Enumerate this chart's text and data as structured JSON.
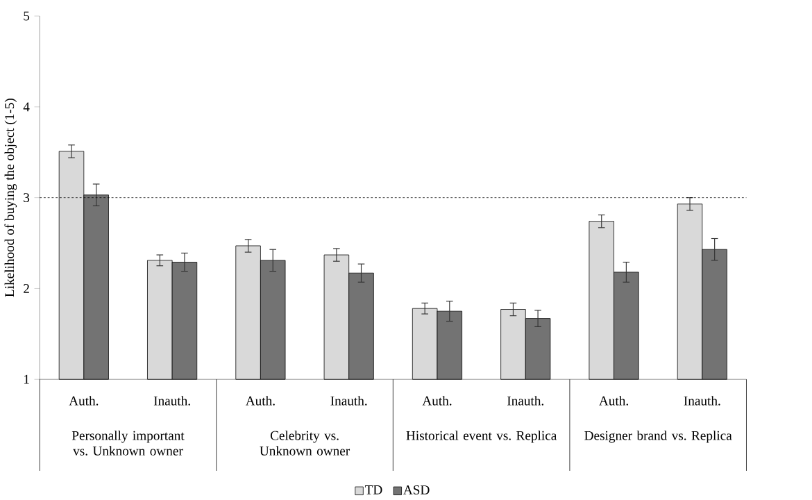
{
  "chart_data": {
    "type": "bar",
    "ylabel": "Likelihood of buying the object (1-5)",
    "categories": [
      "Auth.",
      "Inauth.",
      "Auth.",
      "Inauth.",
      "Auth.",
      "Inauth.",
      "Auth.",
      "Inauth."
    ],
    "series": [
      {
        "name": "TD",
        "color": "#d9d9d9",
        "values": [
          3.51,
          2.31,
          2.47,
          2.37,
          1.78,
          1.77,
          2.74,
          2.93
        ],
        "errors": [
          [
            3.44,
            3.59
          ],
          [
            2.25,
            2.38
          ],
          [
            2.4,
            2.55
          ],
          [
            2.3,
            2.45
          ],
          [
            1.72,
            1.85
          ],
          [
            1.7,
            1.84
          ],
          [
            2.67,
            2.82
          ],
          [
            2.86,
            3.01
          ]
        ]
      },
      {
        "name": "ASD",
        "color": "#737373",
        "values": [
          3.03,
          2.29,
          2.31,
          2.17,
          1.75,
          1.67,
          2.18,
          2.43
        ],
        "errors": [
          [
            2.91,
            3.16
          ],
          [
            2.19,
            2.39
          ],
          [
            2.19,
            2.43
          ],
          [
            2.07,
            2.28
          ],
          [
            1.64,
            1.86
          ],
          [
            1.58,
            1.76
          ],
          [
            2.07,
            2.29
          ],
          [
            2.31,
            2.55
          ]
        ]
      }
    ],
    "annotations": [
      "Personally important vs. Unknown owner",
      "Celebrity vs. Unknown owner",
      "Historical event vs. Replica",
      "Designer brand vs. Replica"
    ],
    "ref_lines": [
      {
        "axis": "y",
        "value": 3,
        "line_style": "dashed",
        "color": "#000000"
      }
    ],
    "ylim": [
      1,
      5
    ],
    "yticks": [
      1,
      2,
      3,
      4,
      5
    ],
    "legend": "bottom"
  }
}
